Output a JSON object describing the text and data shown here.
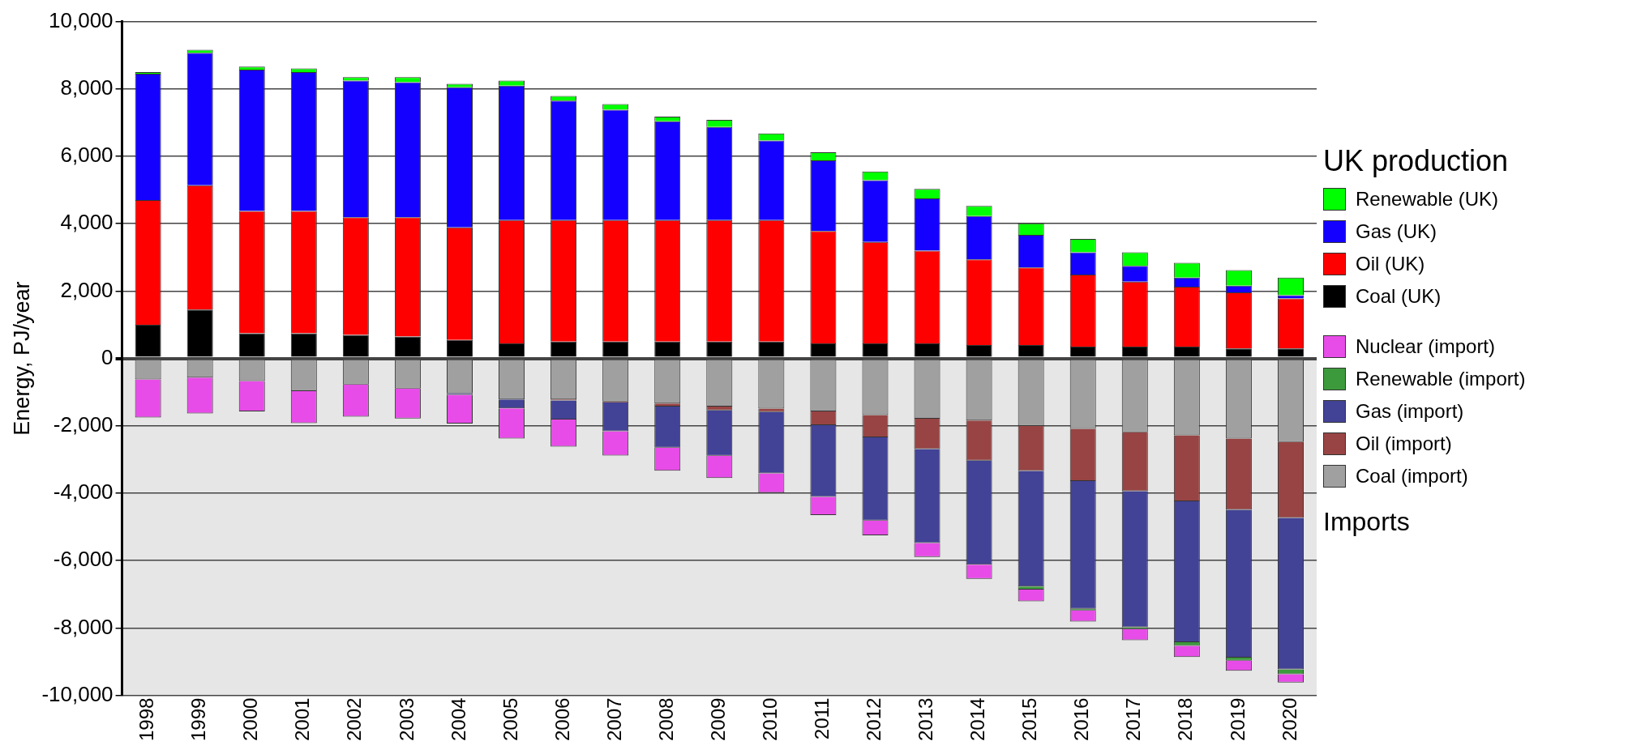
{
  "chart_data": {
    "type": "bar",
    "stacked": true,
    "ylabel": "Energy, PJ/year",
    "legend_title": "UK production",
    "legend": "right",
    "grid": "y",
    "annotations": [
      "Imports"
    ],
    "categories": [
      "1998",
      "1999",
      "2000",
      "2001",
      "2002",
      "2003",
      "2004",
      "2005",
      "2006",
      "2007",
      "2008",
      "2009",
      "2010",
      "2011",
      "2012",
      "2013",
      "2014",
      "2015",
      "2016",
      "2017",
      "2018",
      "2019",
      "2020"
    ],
    "ylim": [
      -10000,
      10000
    ],
    "yticks": [
      {
        "value": -10000,
        "label": "-10,000"
      },
      {
        "value": -8000,
        "label": "-8,000"
      },
      {
        "value": -6000,
        "label": "-6,000"
      },
      {
        "value": -4000,
        "label": "-4,000"
      },
      {
        "value": -2000,
        "label": "-2,000"
      },
      0,
      {
        "value": 2000,
        "label": "2,000"
      },
      {
        "value": 4000,
        "label": "4,000"
      },
      {
        "value": 6000,
        "label": "6,000"
      },
      {
        "value": 8000,
        "label": "8,000"
      },
      {
        "value": 10000,
        "label": "10,000"
      }
    ],
    "bands": [
      {
        "axis": "y",
        "from": -10000,
        "to": 0,
        "color": "#e6e6e6"
      }
    ],
    "series": [
      {
        "name": "Coal (UK)",
        "color": "#000000",
        "values": [
          1000,
          1450,
          750,
          750,
          700,
          650,
          550,
          450,
          500,
          500,
          500,
          500,
          500,
          450,
          450,
          450,
          400,
          400,
          350,
          350,
          350,
          300,
          300
        ]
      },
      {
        "name": "Oil (UK)",
        "color": "#ff0000",
        "values": [
          3700,
          3690,
          3630,
          3630,
          3490,
          3540,
          3340,
          3660,
          3610,
          3610,
          3610,
          3610,
          3610,
          3330,
          3010,
          2750,
          2540,
          2300,
          2140,
          1930,
          1780,
          1660,
          1480
        ]
      },
      {
        "name": "Gas (UK)",
        "color": "#1400ff",
        "values": [
          3750,
          3930,
          4190,
          4120,
          4060,
          4010,
          4160,
          3990,
          3540,
          3270,
          2930,
          2760,
          2360,
          2100,
          1830,
          1550,
          1290,
          970,
          660,
          470,
          270,
          200,
          100
        ]
      },
      {
        "name": "Renewable (UK)",
        "color": "#00ff00",
        "values": [
          50,
          90,
          90,
          110,
          100,
          150,
          100,
          150,
          140,
          170,
          140,
          210,
          210,
          240,
          260,
          280,
          300,
          340,
          400,
          400,
          440,
          460,
          520
        ]
      },
      {
        "name": "Coal (import)",
        "color": "#a0a0a0",
        "values": [
          -620,
          -570,
          -670,
          -970,
          -770,
          -890,
          -1030,
          -1220,
          -1220,
          -1280,
          -1340,
          -1430,
          -1490,
          -1570,
          -1680,
          -1790,
          -1840,
          -2000,
          -2090,
          -2190,
          -2280,
          -2380,
          -2480
        ]
      },
      {
        "name": "Oil (import)",
        "color": "#984444",
        "values": [
          0,
          0,
          0,
          0,
          0,
          0,
          0,
          0,
          -30,
          -30,
          -90,
          -110,
          -100,
          -410,
          -660,
          -900,
          -1190,
          -1340,
          -1550,
          -1750,
          -1960,
          -2110,
          -2250
        ]
      },
      {
        "name": "Gas (import)",
        "color": "#424296",
        "values": [
          0,
          0,
          0,
          0,
          0,
          0,
          -50,
          -260,
          -560,
          -850,
          -1220,
          -1350,
          -1820,
          -2130,
          -2470,
          -2790,
          -3090,
          -3430,
          -3790,
          -4040,
          -4180,
          -4390,
          -4500
        ]
      },
      {
        "name": "Renewable (import)",
        "color": "#3c9a3c",
        "values": [
          0,
          0,
          0,
          0,
          0,
          0,
          0,
          0,
          0,
          0,
          0,
          0,
          0,
          0,
          0,
          0,
          0,
          -90,
          -50,
          -50,
          -110,
          -90,
          -140
        ]
      },
      {
        "name": "Nuclear (import)",
        "color": "#e84ce8",
        "values": [
          -1130,
          -1060,
          -900,
          -950,
          -960,
          -890,
          -850,
          -900,
          -810,
          -720,
          -680,
          -660,
          -580,
          -540,
          -440,
          -410,
          -420,
          -350,
          -330,
          -330,
          -330,
          -300,
          -250
        ]
      }
    ]
  }
}
